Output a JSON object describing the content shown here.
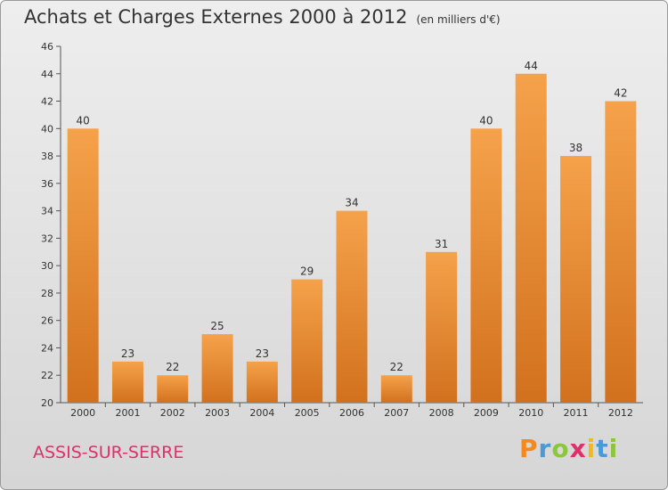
{
  "header": {
    "title": "Achats et Charges Externes 2000 à 2012",
    "subtitle": "(en milliers d'€)"
  },
  "footer": {
    "city": "ASSIS-SUR-SERRE",
    "logo": "Proxiti"
  },
  "colors": {
    "bar_top": "#f5a24b",
    "bar_bottom": "#d2711d",
    "city_text": "#e0306a",
    "logo_letters": [
      "#f28a1e",
      "#4a9ad6",
      "#8cc63f",
      "#e0306a",
      "#f2b81e",
      "#4a9ad6",
      "#8cc63f"
    ]
  },
  "chart_data": {
    "type": "bar",
    "title": "Achats et Charges Externes 2000 à 2012",
    "subtitle": "(en milliers d'€)",
    "categories": [
      "2000",
      "2001",
      "2002",
      "2003",
      "2004",
      "2005",
      "2006",
      "2007",
      "2008",
      "2009",
      "2010",
      "2011",
      "2012"
    ],
    "values": [
      40,
      23,
      22,
      25,
      23,
      29,
      34,
      22,
      31,
      40,
      44,
      38,
      42
    ],
    "ylim": [
      20,
      46
    ],
    "yticks": [
      20,
      22,
      24,
      26,
      28,
      30,
      32,
      34,
      36,
      38,
      40,
      42,
      44,
      46
    ],
    "grid": false,
    "data_labels": true
  }
}
